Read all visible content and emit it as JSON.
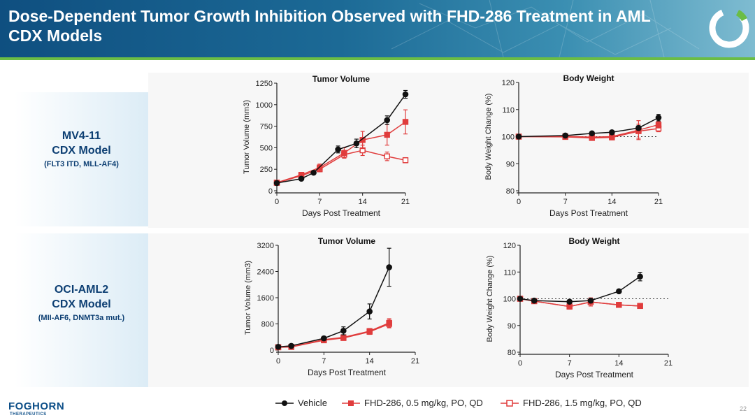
{
  "header": {
    "title": "Dose-Dependent Tumor Growth Inhibition Observed with FHD-286 Treatment in AML CDX Models"
  },
  "models": [
    {
      "name_line1": "MV4-11",
      "name_line2": "CDX Model",
      "detail": "(FLT3 ITD, MLL-AF4)"
    },
    {
      "name_line1": "OCI-AML2",
      "name_line2": "CDX Model",
      "detail": "(MII-AF6, DNMT3a mut.)"
    }
  ],
  "legend": [
    {
      "label": "Vehicle",
      "color": "#111111",
      "marker": "filled-circle"
    },
    {
      "label": "FHD-286, 0.5 mg/kg, PO, QD",
      "color": "#e03c3c",
      "marker": "filled-square"
    },
    {
      "label": "FHD-286, 1.5 mg/kg, PO, QD",
      "color": "#e03c3c",
      "marker": "open-square"
    }
  ],
  "footer": {
    "brand": "FOGHORN",
    "brand_sub": "THERAPEUTICS",
    "page_number": "22"
  },
  "chart_data": [
    {
      "id": "mv411-tv",
      "type": "line",
      "title": "Tumor Volume",
      "xlabel": "Days Post Treatment",
      "ylabel": "Tumor Volume (mm3)",
      "xlim": [
        0,
        21
      ],
      "ylim": [
        0,
        1250
      ],
      "xticks": [
        0,
        7,
        14,
        21
      ],
      "yticks": [
        0,
        250,
        500,
        750,
        1000,
        1250
      ],
      "series": [
        {
          "name": "Vehicle",
          "x": [
            0,
            4,
            6,
            10,
            13,
            18,
            21
          ],
          "y": [
            90,
            140,
            210,
            480,
            550,
            820,
            1120
          ],
          "err": [
            10,
            15,
            20,
            40,
            50,
            50,
            45
          ]
        },
        {
          "name": "FHD-286, 0.5 mg/kg, PO, QD",
          "x": [
            0,
            4,
            7,
            11,
            14,
            18,
            21
          ],
          "y": [
            95,
            185,
            270,
            440,
            590,
            650,
            800
          ],
          "err": [
            10,
            20,
            40,
            60,
            100,
            120,
            140
          ]
        },
        {
          "name": "FHD-286, 1.5 mg/kg, PO, QD",
          "x": [
            0,
            4,
            7,
            11,
            14,
            18,
            21
          ],
          "y": [
            92,
            175,
            250,
            420,
            470,
            400,
            355
          ],
          "err": [
            8,
            15,
            30,
            40,
            60,
            50,
            30
          ]
        }
      ]
    },
    {
      "id": "mv411-bw",
      "type": "line",
      "title": "Body Weight",
      "xlabel": "Days Post Treatment",
      "ylabel": "Body Weight Change (%)",
      "xlim": [
        0,
        21
      ],
      "ylim": [
        80,
        120
      ],
      "xticks": [
        0,
        7,
        14,
        21
      ],
      "yticks": [
        80,
        90,
        100,
        110,
        120
      ],
      "refline": 100,
      "series": [
        {
          "name": "Vehicle",
          "x": [
            0,
            7,
            11,
            14,
            18,
            21
          ],
          "y": [
            100,
            100.4,
            101.2,
            101.6,
            103.2,
            107
          ],
          "err": [
            0,
            0.4,
            0.5,
            0.5,
            0.8,
            1.2
          ]
        },
        {
          "name": "FHD-286, 0.5 mg/kg, PO, QD",
          "x": [
            0,
            7,
            11,
            14,
            18,
            21
          ],
          "y": [
            100,
            100.1,
            99.8,
            100,
            102.4,
            104.4
          ],
          "err": [
            0,
            0.4,
            0.8,
            0.8,
            3.5,
            1.2
          ]
        },
        {
          "name": "FHD-286, 1.5 mg/kg, PO, QD",
          "x": [
            0,
            7,
            11,
            14,
            18,
            21
          ],
          "y": [
            100,
            99.9,
            99.5,
            99.7,
            102,
            103
          ],
          "err": [
            0,
            0.4,
            0.6,
            0.8,
            2.6,
            1.2
          ]
        }
      ]
    },
    {
      "id": "ociaml2-tv",
      "type": "line",
      "title": "Tumor Volume",
      "xlabel": "Days Post Treatment",
      "ylabel": "Tumor Volume (mm3)",
      "xlim": [
        0,
        21
      ],
      "ylim": [
        0,
        3200
      ],
      "xticks": [
        0,
        7,
        14,
        21
      ],
      "yticks": [
        0,
        800,
        1600,
        2400,
        3200
      ],
      "series": [
        {
          "name": "Vehicle",
          "x": [
            0,
            2,
            7,
            10,
            14,
            17
          ],
          "y": [
            100,
            130,
            360,
            590,
            1180,
            2530
          ],
          "err": [
            20,
            30,
            60,
            120,
            230,
            580
          ]
        },
        {
          "name": "FHD-286, 0.5 mg/kg, PO, QD",
          "x": [
            0,
            2,
            7,
            10,
            14,
            17
          ],
          "y": [
            90,
            100,
            320,
            390,
            580,
            830
          ],
          "err": [
            20,
            20,
            50,
            50,
            80,
            130
          ]
        },
        {
          "name": "FHD-286, 1.5 mg/kg, PO, QD",
          "x": [
            0,
            2,
            7,
            10,
            14,
            17
          ],
          "y": [
            85,
            95,
            300,
            370,
            560,
            800
          ],
          "err": [
            20,
            20,
            50,
            50,
            80,
            120
          ]
        }
      ]
    },
    {
      "id": "ociaml2-bw",
      "type": "line",
      "title": "Body Weight",
      "xlabel": "Days Post Treatment",
      "ylabel": "Body Weight Change (%)",
      "xlim": [
        0,
        21
      ],
      "ylim": [
        80,
        120
      ],
      "xticks": [
        0,
        7,
        14,
        21
      ],
      "yticks": [
        80,
        90,
        100,
        110,
        120
      ],
      "refline": 100,
      "series": [
        {
          "name": "Vehicle",
          "x": [
            0,
            2,
            7,
            10,
            14,
            17
          ],
          "y": [
            100,
            99.3,
            98.9,
            99.3,
            102.8,
            108.3
          ],
          "err": [
            0,
            0.3,
            0.5,
            0.8,
            0.6,
            1.6
          ]
        },
        {
          "name": "FHD-286, 0.5 mg/kg, PO, QD",
          "x": [
            0,
            2,
            7,
            10,
            14,
            17
          ],
          "y": [
            100,
            99.1,
            97.1,
            98.8,
            97.7,
            97.3
          ],
          "err": [
            0,
            0.3,
            1.0,
            1.5,
            0.8,
            0.6
          ]
        },
        {
          "name": "FHD-286, 1.5 mg/kg, PO, QD",
          "x": [
            0,
            2,
            7,
            10,
            14,
            17
          ],
          "y": [
            100,
            99.1,
            97.1,
            98.8,
            97.7,
            97.3
          ],
          "err": [
            0,
            0.3,
            1.0,
            1.5,
            0.8,
            0.6
          ]
        }
      ]
    }
  ]
}
